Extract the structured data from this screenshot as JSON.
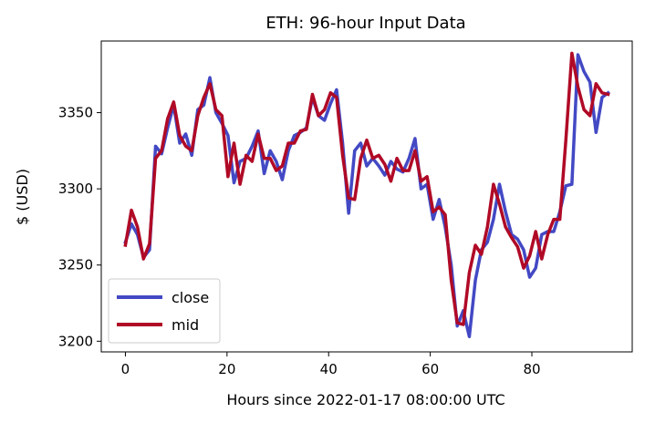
{
  "chart_data": {
    "type": "line",
    "title": "ETH: 96-hour Input Data",
    "xlabel": "Hours since 2022-01-17 08:00:00 UTC",
    "ylabel": "$ (USD)",
    "xlim": [
      -4.75,
      99.75
    ],
    "ylim": [
      3193,
      3397
    ],
    "xticks": [
      0,
      20,
      40,
      60,
      80
    ],
    "yticks": [
      3200,
      3250,
      3300,
      3350
    ],
    "legend_position": "lower-left",
    "grid": false,
    "series": [
      {
        "name": "close",
        "color": "#4349c4",
        "line_width": 3.5,
        "values": [
          3265,
          3277,
          3270,
          3255,
          3260,
          3328,
          3323,
          3340,
          3355,
          3330,
          3336,
          3322,
          3352,
          3355,
          3373,
          3350,
          3343,
          3335,
          3304,
          3318,
          3320,
          3328,
          3338,
          3310,
          3325,
          3318,
          3306,
          3325,
          3335,
          3337,
          3340,
          3360,
          3348,
          3345,
          3356,
          3365,
          3330,
          3284,
          3325,
          3330,
          3315,
          3320,
          3315,
          3309,
          3318,
          3313,
          3311,
          3320,
          3333,
          3300,
          3303,
          3280,
          3293,
          3275,
          3250,
          3210,
          3220,
          3203,
          3240,
          3260,
          3265,
          3280,
          3303,
          3285,
          3270,
          3267,
          3260,
          3242,
          3248,
          3270,
          3272,
          3272,
          3285,
          3302,
          3303,
          3388,
          3377,
          3370,
          3337,
          3360,
          3363
        ]
      },
      {
        "name": "mid",
        "color": "#b00a26",
        "line_width": 3.5,
        "values": [
          3263,
          3286,
          3275,
          3254,
          3264,
          3320,
          3325,
          3346,
          3357,
          3335,
          3328,
          3325,
          3348,
          3360,
          3369,
          3352,
          3348,
          3308,
          3330,
          3303,
          3322,
          3318,
          3336,
          3320,
          3320,
          3312,
          3315,
          3330,
          3330,
          3338,
          3339,
          3362,
          3348,
          3352,
          3363,
          3360,
          3322,
          3294,
          3293,
          3320,
          3332,
          3320,
          3322,
          3316,
          3305,
          3320,
          3312,
          3312,
          3325,
          3305,
          3308,
          3285,
          3288,
          3283,
          3240,
          3212,
          3211,
          3245,
          3263,
          3257,
          3275,
          3303,
          3290,
          3275,
          3268,
          3262,
          3248,
          3256,
          3272,
          3254,
          3270,
          3280,
          3280,
          3332,
          3389,
          3367,
          3352,
          3348,
          3369,
          3363,
          3362
        ]
      }
    ]
  }
}
